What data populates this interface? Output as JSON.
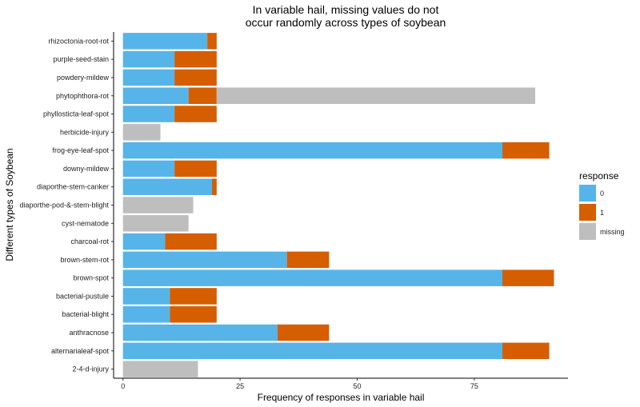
{
  "chart_data": {
    "type": "bar",
    "orientation": "horizontal",
    "stacked": true,
    "title": [
      "In variable hail, missing values do not",
      "occur randomly across types of soybean"
    ],
    "xlabel": "Frequency of responses in variable hail",
    "ylabel": "Different types of Soybean",
    "xlim": [
      -2,
      95
    ],
    "xticks": [
      0,
      25,
      50,
      75
    ],
    "grid": false,
    "legend": {
      "title": "response",
      "position": "right",
      "entries": [
        {
          "label": "0",
          "color": "#56B4E9"
        },
        {
          "label": "1",
          "color": "#D55E00"
        },
        {
          "label": "missing",
          "color": "#BEBEBE"
        }
      ]
    },
    "categories": [
      "2-4-d-injury",
      "alternarialeaf-spot",
      "anthracnose",
      "bacterial-blight",
      "bacterial-pustule",
      "brown-spot",
      "brown-stem-rot",
      "charcoal-rot",
      "cyst-nematode",
      "diaporthe-pod-&-stem-blight",
      "diaporthe-stem-canker",
      "downy-mildew",
      "frog-eye-leaf-spot",
      "herbicide-injury",
      "phyllosticta-leaf-spot",
      "phytophthora-rot",
      "powdery-mildew",
      "purple-seed-stain",
      "rhizoctonia-root-rot"
    ],
    "series": [
      {
        "name": "0",
        "values": [
          0,
          81,
          33,
          10,
          10,
          81,
          35,
          9,
          0,
          0,
          19,
          11,
          81,
          0,
          11,
          14,
          11,
          11,
          18
        ]
      },
      {
        "name": "1",
        "values": [
          0,
          10,
          11,
          10,
          10,
          11,
          9,
          11,
          0,
          0,
          1,
          9,
          10,
          0,
          9,
          6,
          9,
          9,
          2
        ]
      },
      {
        "name": "missing",
        "values": [
          16,
          0,
          0,
          0,
          0,
          0,
          0,
          0,
          14,
          15,
          0,
          0,
          0,
          8,
          0,
          68,
          0,
          0,
          0
        ]
      }
    ]
  }
}
